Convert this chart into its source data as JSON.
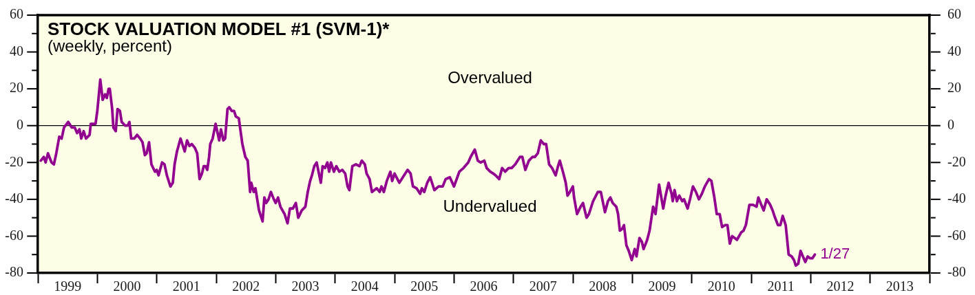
{
  "chart_data": {
    "type": "line",
    "title": "STOCK VALUATION MODEL #1 (SVM-1)*",
    "subtitle": "(weekly, percent)",
    "x": [
      1999.05,
      1999.1,
      1999.13,
      1999.17,
      1999.23,
      1999.27,
      1999.31,
      1999.36,
      1999.4,
      1999.44,
      1999.51,
      1999.57,
      1999.62,
      1999.66,
      1999.7,
      1999.73,
      1999.77,
      1999.81,
      1999.87,
      1999.89,
      1999.97,
      2000.0,
      2000.05,
      2000.09,
      2000.13,
      2000.16,
      2000.19,
      2000.21,
      2000.25,
      2000.27,
      2000.31,
      2000.34,
      2000.38,
      2000.41,
      2000.47,
      2000.51,
      2000.54,
      2000.57,
      2000.62,
      2000.67,
      2000.72,
      2000.76,
      2000.8,
      2000.83,
      2000.87,
      2000.91,
      2000.97,
      2001.0,
      2001.03,
      2001.09,
      2001.13,
      2001.17,
      2001.23,
      2001.27,
      2001.3,
      2001.34,
      2001.4,
      2001.47,
      2001.51,
      2001.55,
      2001.59,
      2001.64,
      2001.68,
      2001.72,
      2001.76,
      2001.79,
      2001.82,
      2001.85,
      2001.88,
      2001.9,
      2001.94,
      2001.99,
      2002.05,
      2002.08,
      2002.12,
      2002.15,
      2002.19,
      2002.22,
      2002.26,
      2002.3,
      2002.33,
      2002.38,
      2002.44,
      2002.49,
      2002.53,
      2002.57,
      2002.59,
      2002.63,
      2002.66,
      2002.69,
      2002.72,
      2002.78,
      2002.81,
      2002.84,
      2002.88,
      2002.92,
      2002.97,
      2003.0,
      2003.04,
      2003.08,
      2003.15,
      2003.2,
      2003.24,
      2003.29,
      2003.34,
      2003.38,
      2003.44,
      2003.5,
      2003.54,
      2003.58,
      2003.61,
      2003.65,
      2003.69,
      2003.76,
      2003.79,
      2003.83,
      2003.87,
      2003.9,
      2003.93,
      2003.98,
      2004.02,
      2004.07,
      2004.12,
      2004.17,
      2004.21,
      2004.24,
      2004.29,
      2004.35,
      2004.41,
      2004.45,
      2004.5,
      2004.53,
      2004.58,
      2004.62,
      2004.7,
      2004.75,
      2004.78,
      2004.82,
      2004.87,
      2004.93,
      2004.96,
      2005.0,
      2005.08,
      2005.16,
      2005.22,
      2005.27,
      2005.31,
      2005.37,
      2005.43,
      2005.46,
      2005.5,
      2005.55,
      2005.6,
      2005.67,
      2005.74,
      2005.81,
      2005.86,
      2005.93,
      2006.0,
      2006.09,
      2006.16,
      2006.24,
      2006.28,
      2006.35,
      2006.4,
      2006.45,
      2006.51,
      2006.55,
      2006.61,
      2006.66,
      2006.7,
      2006.76,
      2006.81,
      2006.86,
      2006.92,
      2006.97,
      2007.03,
      2007.11,
      2007.15,
      2007.2,
      2007.26,
      2007.32,
      2007.36,
      2007.41,
      2007.46,
      2007.51,
      2007.55,
      2007.6,
      2007.65,
      2007.71,
      2007.75,
      2007.78,
      2007.84,
      2007.88,
      2007.91,
      2007.95,
      2008.0,
      2008.02,
      2008.07,
      2008.13,
      2008.17,
      2008.23,
      2008.27,
      2008.34,
      2008.42,
      2008.47,
      2008.54,
      2008.59,
      2008.63,
      2008.67,
      2008.73,
      2008.76,
      2008.79,
      2008.83,
      2008.86,
      2008.9,
      2008.94,
      2008.99,
      2009.04,
      2009.07,
      2009.12,
      2009.16,
      2009.19,
      2009.25,
      2009.29,
      2009.35,
      2009.39,
      2009.45,
      2009.52,
      2009.56,
      2009.61,
      2009.66,
      2009.68,
      2009.71,
      2009.75,
      2009.79,
      2009.84,
      2009.87,
      2009.93,
      2009.97,
      2010.02,
      2010.07,
      2010.12,
      2010.17,
      2010.22,
      2010.29,
      2010.33,
      2010.38,
      2010.42,
      2010.47,
      2010.51,
      2010.56,
      2010.6,
      2010.64,
      2010.68,
      2010.72,
      2010.76,
      2010.83,
      2010.87,
      2010.91,
      2010.97,
      2011.03,
      2011.09,
      2011.12,
      2011.17,
      2011.21,
      2011.26,
      2011.32,
      2011.36,
      2011.39,
      2011.45,
      2011.49,
      2011.53,
      2011.58,
      2011.63,
      2011.68,
      2011.72,
      2011.75,
      2011.79,
      2011.83,
      2011.87,
      2011.91,
      2011.95,
      2011.99,
      2012.03,
      2012.07
    ],
    "series": [
      {
        "color": "#92008f",
        "values": [
          -19,
          -17,
          -20,
          -15,
          -20,
          -21,
          -15,
          -6,
          -7,
          -1,
          2,
          -1,
          -1,
          -4,
          -2,
          -7,
          -3,
          -7,
          -5,
          1,
          1,
          8,
          25,
          14,
          17,
          15,
          20,
          20,
          9,
          -1,
          -3,
          9,
          8,
          2,
          0,
          0,
          2,
          -7,
          -7,
          -5,
          -7,
          -9,
          -16,
          -15,
          -9,
          -21,
          -25,
          -24,
          -27,
          -20,
          -21,
          -27,
          -33,
          -31,
          -21,
          -14,
          -7,
          -14,
          -8,
          -11,
          -10,
          -12,
          -15,
          -29,
          -26,
          -22,
          -22,
          -24,
          -17,
          -10,
          -7,
          1,
          -8,
          -2,
          -8,
          -7,
          9,
          10,
          8,
          8,
          5,
          4,
          -10,
          -17,
          -19,
          -36,
          -31,
          -36,
          -34,
          -40,
          -46,
          -52,
          -39,
          -42,
          -40,
          -36,
          -40,
          -42,
          -39,
          -44,
          -48,
          -53,
          -45,
          -45,
          -42,
          -50,
          -46,
          -44,
          -36,
          -30,
          -27,
          -22,
          -20,
          -31,
          -22,
          -23,
          -20,
          -25,
          -20,
          -25,
          -22,
          -25,
          -24,
          -26,
          -33,
          -35,
          -22,
          -21,
          -22,
          -19,
          -21,
          -26,
          -29,
          -36,
          -34,
          -36,
          -33,
          -36,
          -30,
          -25,
          -30,
          -26,
          -31,
          -27,
          -24,
          -26,
          -33,
          -34,
          -37,
          -34,
          -36,
          -31,
          -28,
          -35,
          -33,
          -33,
          -29,
          -28,
          -33,
          -25,
          -23,
          -20,
          -17,
          -13,
          -19,
          -20,
          -19,
          -23,
          -25,
          -26,
          -27,
          -29,
          -23,
          -25,
          -23,
          -23,
          -21,
          -17,
          -17,
          -24,
          -19,
          -17,
          -17,
          -15,
          -8,
          -10,
          -10,
          -21,
          -23,
          -27,
          -22,
          -19,
          -26,
          -31,
          -38,
          -36,
          -33,
          -39,
          -48,
          -44,
          -42,
          -50,
          -48,
          -41,
          -36,
          -36,
          -47,
          -41,
          -39,
          -42,
          -44,
          -48,
          -57,
          -56,
          -54,
          -65,
          -68,
          -73,
          -67,
          -71,
          -61,
          -63,
          -67,
          -62,
          -57,
          -44,
          -48,
          -32,
          -45,
          -38,
          -31,
          -37,
          -41,
          -35,
          -41,
          -38,
          -41,
          -40,
          -45,
          -40,
          -33,
          -36,
          -40,
          -37,
          -33,
          -29,
          -30,
          -39,
          -48,
          -48,
          -55,
          -54,
          -54,
          -64,
          -60,
          -61,
          -62,
          -58,
          -57,
          -54,
          -43,
          -43,
          -44,
          -39,
          -43,
          -46,
          -40,
          -43,
          -46,
          -49,
          -54,
          -54,
          -49,
          -54,
          -70,
          -71,
          -73,
          -76,
          -75,
          -68,
          -71,
          -74,
          -71,
          -72,
          -72,
          -70
        ]
      }
    ],
    "xlim": [
      1999,
      2014
    ],
    "xticks": [
      {
        "value": 1999,
        "label": null
      },
      {
        "value": 1999.5,
        "label": "1999"
      },
      {
        "value": 2000,
        "label": null
      },
      {
        "value": 2000.5,
        "label": "2000"
      },
      {
        "value": 2001,
        "label": null
      },
      {
        "value": 2001.5,
        "label": "2001"
      },
      {
        "value": 2002,
        "label": null
      },
      {
        "value": 2002.5,
        "label": "2002"
      },
      {
        "value": 2003,
        "label": null
      },
      {
        "value": 2003.5,
        "label": "2003"
      },
      {
        "value": 2004,
        "label": null
      },
      {
        "value": 2004.5,
        "label": "2004"
      },
      {
        "value": 2005,
        "label": null
      },
      {
        "value": 2005.5,
        "label": "2005"
      },
      {
        "value": 2006,
        "label": null
      },
      {
        "value": 2006.5,
        "label": "2006"
      },
      {
        "value": 2007,
        "label": null
      },
      {
        "value": 2007.5,
        "label": "2007"
      },
      {
        "value": 2008,
        "label": null
      },
      {
        "value": 2008.5,
        "label": "2008"
      },
      {
        "value": 2009,
        "label": null
      },
      {
        "value": 2009.5,
        "label": "2009"
      },
      {
        "value": 2010,
        "label": null
      },
      {
        "value": 2010.5,
        "label": "2010"
      },
      {
        "value": 2011,
        "label": null
      },
      {
        "value": 2011.5,
        "label": "2011"
      },
      {
        "value": 2012,
        "label": null
      },
      {
        "value": 2012.5,
        "label": "2012"
      },
      {
        "value": 2013,
        "label": null
      },
      {
        "value": 2013.5,
        "label": "2013"
      },
      {
        "value": 2014,
        "label": null
      }
    ],
    "ylim": [
      -80,
      60
    ],
    "yticks": [
      -80,
      {
        "value": -70,
        "label": null
      },
      -60,
      {
        "value": -50,
        "label": null
      },
      -40,
      {
        "value": -30,
        "label": null
      },
      -20,
      {
        "value": -10,
        "label": null
      },
      0,
      {
        "value": 10,
        "label": null
      },
      20,
      {
        "value": 30,
        "label": null
      },
      40,
      {
        "value": 50,
        "label": null
      },
      60
    ],
    "y2lim": [
      -80,
      60
    ],
    "y2ticks": [
      -80,
      {
        "value": -70,
        "label": null
      },
      -60,
      {
        "value": -50,
        "label": null
      },
      -40,
      {
        "value": -30,
        "label": null
      },
      -20,
      {
        "value": -10,
        "label": null
      },
      0,
      {
        "value": 10,
        "label": null
      },
      20,
      {
        "value": 30,
        "label": null
      },
      40,
      {
        "value": 50,
        "label": null
      },
      60
    ],
    "ref_lines": [
      {
        "axis": "y",
        "value": 0,
        "color": "#000000"
      }
    ],
    "annotations": [
      "Overvalued",
      "Undervalued",
      {
        "text": "1/27",
        "x": 2012.07,
        "y": -70
      }
    ]
  }
}
